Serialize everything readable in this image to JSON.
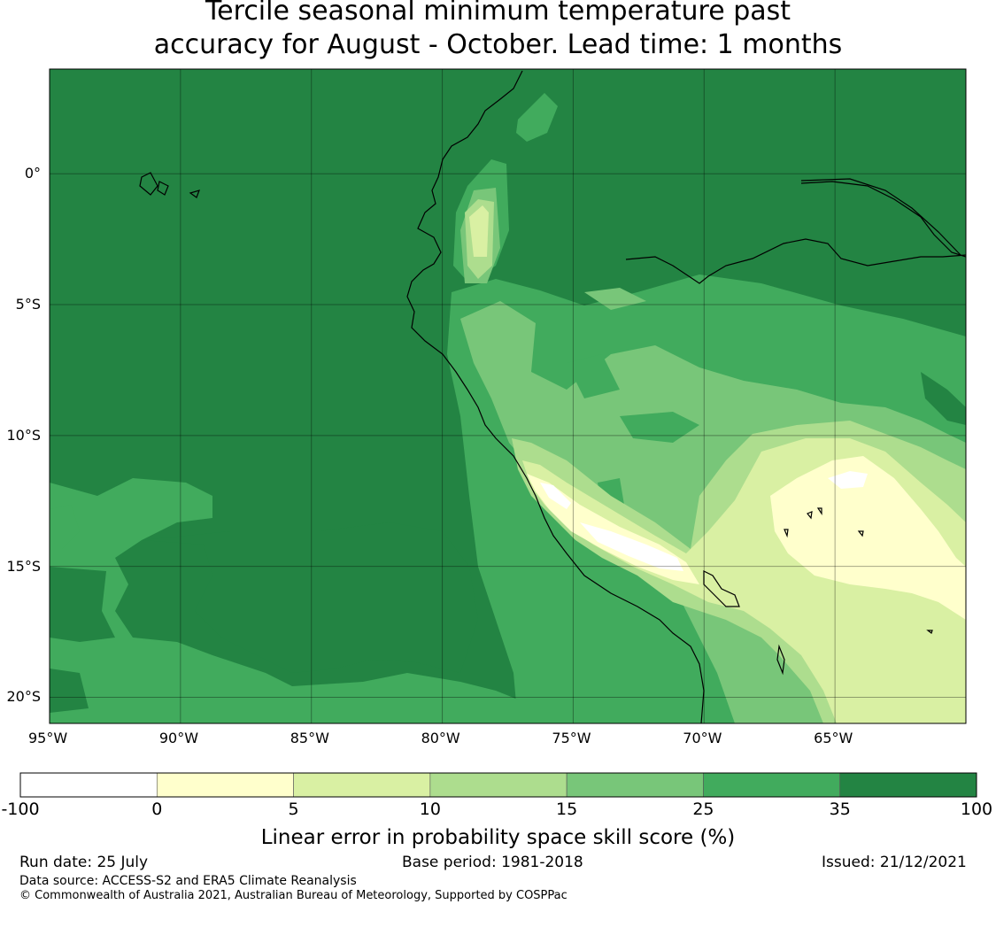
{
  "title_line1": "Tercile seasonal minimum temperature past",
  "title_line2": "accuracy for August - October. Lead time: 1 months",
  "map": {
    "lon_range": [
      -95,
      -60
    ],
    "lat_range": [
      -21,
      4
    ],
    "lon_ticks": [
      {
        "lon": -95,
        "label": "95°W"
      },
      {
        "lon": -90,
        "label": "90°W"
      },
      {
        "lon": -85,
        "label": "85°W"
      },
      {
        "lon": -80,
        "label": "80°W"
      },
      {
        "lon": -75,
        "label": "75°W"
      },
      {
        "lon": -70,
        "label": "70°W"
      },
      {
        "lon": -65,
        "label": "65°W"
      }
    ],
    "lat_ticks": [
      {
        "lat": 0,
        "label": "0°"
      },
      {
        "lat": -5,
        "label": "5°S"
      },
      {
        "lat": -10,
        "label": "10°S"
      },
      {
        "lat": -15,
        "label": "15°S"
      },
      {
        "lat": -20,
        "label": "20°S"
      }
    ],
    "grid": true
  },
  "colorbar": {
    "boundaries": [
      "-100",
      "0",
      "5",
      "10",
      "15",
      "25",
      "35",
      "100"
    ],
    "colors": [
      "#ffffff",
      "#ffffcc",
      "#d9f0a3",
      "#addd8e",
      "#78c679",
      "#41ab5d",
      "#238443"
    ],
    "label": "Linear error in probability space skill score (%)"
  },
  "footer": {
    "run_date": "Run date: 25 July",
    "base_period": "Base period: 1981-2018",
    "issued": "Issued: 21/12/2021",
    "data_source": "Data source: ACCESS-S2 and ERA5 Climate Reanalysis",
    "copyright": "© Commonwealth of Australia 2021, Australian Bureau of Meteorology, Supported by COSPPac"
  }
}
